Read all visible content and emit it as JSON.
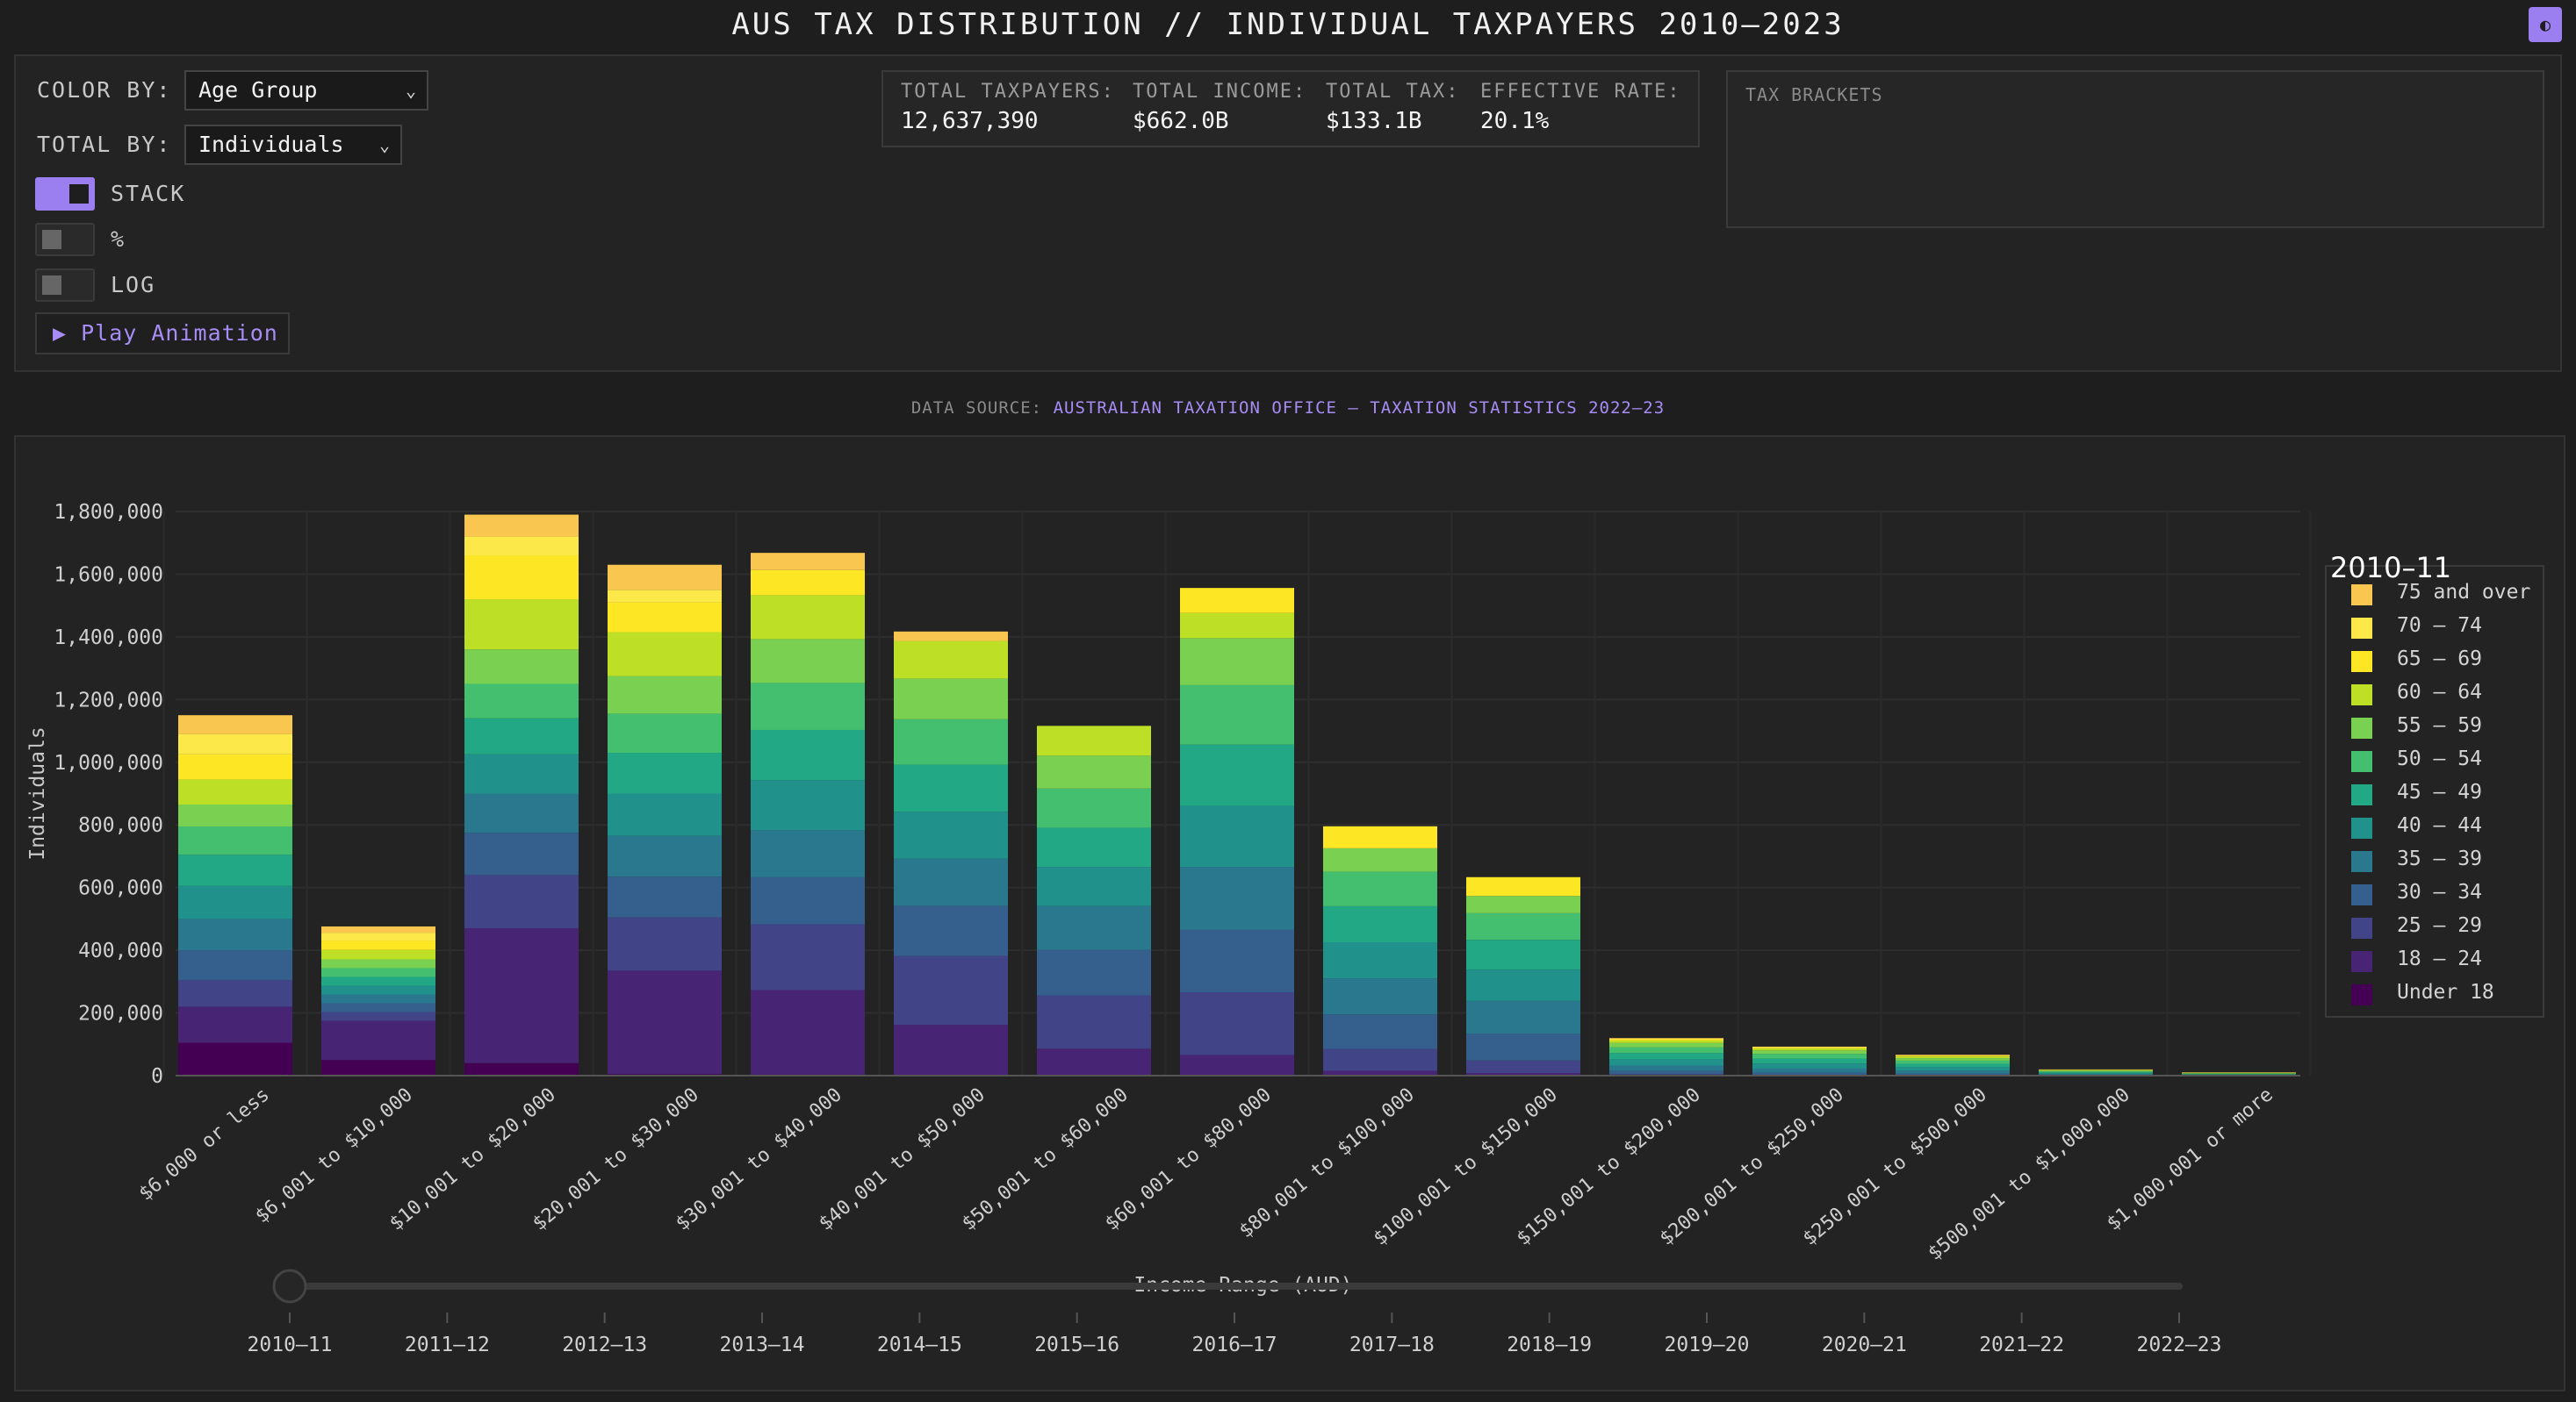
{
  "header": {
    "title": "AUS TAX DISTRIBUTION // INDIVIDUAL TAXPAYERS 2010–2023",
    "theme_toggle": "◐"
  },
  "controls": {
    "color_by_label": "COLOR BY:",
    "color_by_value": "Age Group",
    "total_by_label": "TOTAL BY:",
    "total_by_value": "Individuals",
    "stack_label": "STACK",
    "percent_label": "%",
    "log_label": "LOG",
    "stack_on": true,
    "percent_on": false,
    "log_on": false,
    "play_label": "▶ Play Animation"
  },
  "stats": {
    "taxpayers_label": "TOTAL TAXPAYERS:",
    "taxpayers_value": "12,637,390",
    "income_label": "TOTAL INCOME:",
    "income_value": "$662.0B",
    "tax_label": "TOTAL TAX:",
    "tax_value": "$133.1B",
    "rate_label": "EFFECTIVE RATE:",
    "rate_value": "20.1%"
  },
  "brackets": {
    "title": "TAX BRACKETS"
  },
  "source": {
    "prefix": "DATA SOURCE: ",
    "link": "AUSTRALIAN TAXATION OFFICE – TAXATION STATISTICS 2022–23"
  },
  "colors": {
    "accent": "#9b7ef0",
    "series": [
      "#440154",
      "#482475",
      "#414487",
      "#355f8d",
      "#2a788e",
      "#21918c",
      "#22a884",
      "#44bf70",
      "#7ad151",
      "#bddf26",
      "#fde725",
      "#fde84a",
      "#f9c74f"
    ]
  },
  "chart_data": {
    "type": "bar",
    "stacked": true,
    "xlabel": "Income Range (AUD)",
    "ylabel": "Individuals",
    "ylim": [
      0,
      1800000
    ],
    "yticks": [
      0,
      200000,
      400000,
      600000,
      800000,
      1000000,
      1200000,
      1400000,
      1600000,
      1800000
    ],
    "ytick_labels": [
      "0",
      "200,000",
      "400,000",
      "600,000",
      "800,000",
      "1,000,000",
      "1,200,000",
      "1,400,000",
      "1,600,000",
      "1,800,000"
    ],
    "grid": true,
    "legend_title": "2010–11",
    "legend_position": "right",
    "categories": [
      "$6,000 or less",
      "$6,001 to $10,000",
      "$10,001 to $20,000",
      "$20,001 to $30,000",
      "$30,001 to $40,000",
      "$40,001 to $50,000",
      "$50,001 to $60,000",
      "$60,001 to $80,000",
      "$80,001 to $100,000",
      "$100,001 to $150,000",
      "$150,001 to $200,000",
      "$200,001 to $250,000",
      "$250,001 to $500,000",
      "$500,001 to $1,000,000",
      "$1,000,001 or more"
    ],
    "series": [
      {
        "name": "Under 18",
        "values": [
          105000,
          50000,
          40000,
          5000,
          3000,
          2000,
          1000,
          1000,
          500,
          300,
          100,
          50,
          30,
          10,
          5
        ]
      },
      {
        "name": "18 – 24",
        "values": [
          115000,
          125000,
          430000,
          330000,
          270000,
          160000,
          85000,
          65000,
          15000,
          8000,
          1000,
          500,
          300,
          100,
          50
        ]
      },
      {
        "name": "25 – 29",
        "values": [
          85000,
          28000,
          170000,
          170000,
          210000,
          220000,
          170000,
          200000,
          70000,
          40000,
          4000,
          2000,
          1500,
          500,
          200
        ]
      },
      {
        "name": "30 – 34",
        "values": [
          95000,
          28000,
          135000,
          130000,
          150000,
          160000,
          145000,
          200000,
          110000,
          85000,
          10000,
          7000,
          5000,
          1500,
          700
        ]
      },
      {
        "name": "35 – 39",
        "values": [
          100000,
          28000,
          125000,
          130000,
          150000,
          150000,
          140000,
          200000,
          115000,
          105000,
          17000,
          13000,
          9000,
          2500,
          1200
        ]
      },
      {
        "name": "40 – 44",
        "values": [
          105000,
          28000,
          125000,
          135000,
          160000,
          150000,
          125000,
          195000,
          115000,
          100000,
          20000,
          16000,
          11000,
          3000,
          1500
        ]
      },
      {
        "name": "45 – 49",
        "values": [
          100000,
          28000,
          115000,
          130000,
          160000,
          150000,
          125000,
          195000,
          115000,
          95000,
          20000,
          16000,
          11000,
          3000,
          1500
        ]
      },
      {
        "name": "50 – 54",
        "values": [
          90000,
          28000,
          110000,
          125000,
          150000,
          145000,
          125000,
          190000,
          110000,
          85000,
          18000,
          15000,
          10000,
          3000,
          1500
        ]
      },
      {
        "name": "55 – 59",
        "values": [
          70000,
          28000,
          110000,
          120000,
          140000,
          130000,
          105000,
          150000,
          75000,
          55000,
          14000,
          11000,
          8000,
          2500,
          1200
        ]
      },
      {
        "name": "60 – 64",
        "values": [
          80000,
          30000,
          160000,
          140000,
          140000,
          120000,
          95000,
          80000,
          0,
          0,
          8000,
          6000,
          5000,
          1500,
          1000
        ]
      },
      {
        "name": "65 – 69",
        "values": [
          80000,
          30000,
          140000,
          95000,
          80000,
          0,
          0,
          80000,
          70000,
          60000,
          4000,
          3000,
          3000,
          1000,
          800
        ]
      },
      {
        "name": "70 – 74",
        "values": [
          65000,
          25000,
          60000,
          40000,
          0,
          0,
          0,
          0,
          0,
          0,
          2000,
          1500,
          1500,
          800,
          500
        ]
      },
      {
        "name": "75 and over",
        "values": [
          60000,
          20000,
          70000,
          80000,
          55000,
          30000,
          0,
          0,
          0,
          0,
          2000,
          1500,
          1500,
          500,
          500
        ]
      }
    ],
    "slider": {
      "labels": [
        "2010–11",
        "2011–12",
        "2012–13",
        "2013–14",
        "2014–15",
        "2015–16",
        "2016–17",
        "2017–18",
        "2018–19",
        "2019–20",
        "2020–21",
        "2021–22",
        "2022–23"
      ],
      "active": "2010–11"
    }
  }
}
